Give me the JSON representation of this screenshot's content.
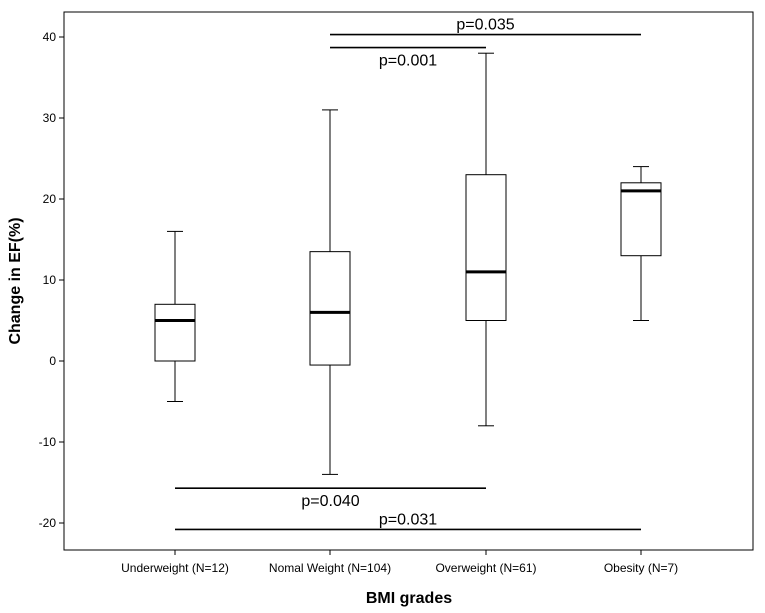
{
  "chart_data": {
    "type": "box",
    "xlabel": "BMI grades",
    "ylabel": "Change in EF(%)",
    "ylim": [
      -23,
      45
    ],
    "yticks": [
      -20,
      -10,
      0,
      10,
      20,
      30,
      40
    ],
    "ytick_labels": [
      "-20",
      "-10",
      "0",
      "10",
      "20",
      "30",
      "40"
    ],
    "grid": false,
    "categories": [
      "Underweight (N=12)",
      "Nomal Weight (N=104)",
      "Overweight (N=61)",
      "Obesity (N=7)"
    ],
    "boxes": [
      {
        "category": "Underweight (N=12)",
        "whisker_low": -5,
        "q1": 0,
        "median": 5,
        "q3": 7,
        "whisker_high": 16
      },
      {
        "category": "Nomal Weight (N=104)",
        "whisker_low": -14,
        "q1": -0.5,
        "median": 6,
        "q3": 13.5,
        "whisker_high": 31
      },
      {
        "category": "Overweight (N=61)",
        "whisker_low": -8,
        "q1": 5,
        "median": 11,
        "q3": 23,
        "whisker_high": 38
      },
      {
        "category": "Obesity (N=7)",
        "whisker_low": 5,
        "q1": 13,
        "median": 21,
        "q3": 22,
        "whisker_high": 24
      }
    ],
    "annotations": [
      {
        "text": "p=0.035",
        "from": "Nomal Weight (N=104)",
        "to": "Obesity (N=7)",
        "y": 40.3,
        "label_pos": "above"
      },
      {
        "text": "p=0.001",
        "from": "Nomal Weight (N=104)",
        "to": "Overweight (N=61)",
        "y": 38.7,
        "label_pos": "below"
      },
      {
        "text": "p=0.040",
        "from": "Underweight (N=12)",
        "to": "Overweight (N=61)",
        "y": -15.7,
        "label_pos": "below"
      },
      {
        "text": "p=0.031",
        "from": "Underweight (N=12)",
        "to": "Obesity (N=7)",
        "y": -20.8,
        "label_pos": "above"
      }
    ]
  }
}
